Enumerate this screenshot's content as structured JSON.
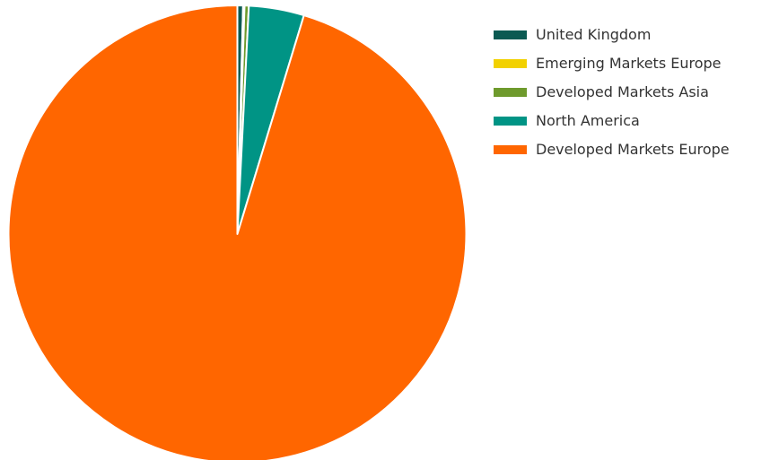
{
  "chart_data": {
    "type": "pie",
    "legend_position": "right",
    "start_angle_deg": 0,
    "direction": "clockwise",
    "slice_border_color": "#ffffff",
    "slices": [
      {
        "label": "United Kingdom",
        "value": 0.4,
        "color": "#0b5a52"
      },
      {
        "label": "Emerging Markets Europe",
        "value": 0.1,
        "color": "#f2d100"
      },
      {
        "label": "Developed Markets Asia",
        "value": 0.3,
        "color": "#6e9a2c"
      },
      {
        "label": "North America",
        "value": 3.9,
        "color": "#009485"
      },
      {
        "label": "Developed Markets Europe",
        "value": 95.3,
        "color": "#ff6600"
      }
    ]
  }
}
